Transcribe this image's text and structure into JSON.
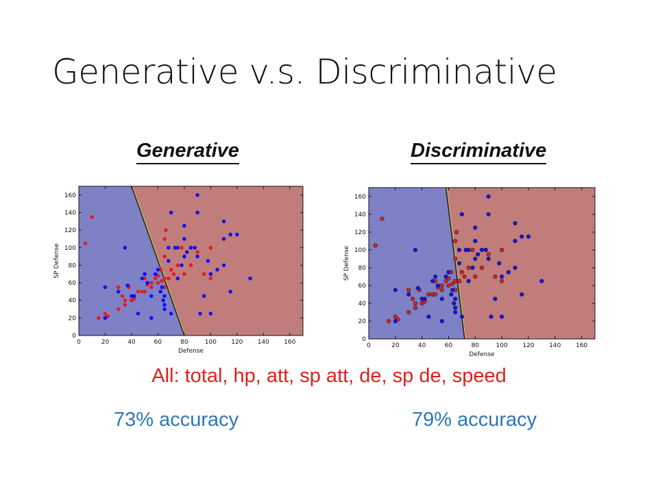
{
  "slide": {
    "title": "Generative v.s. Discriminative",
    "left_heading": "Generative",
    "right_heading": "Discriminative",
    "features_text": "All: total, hp, att, sp att, de, sp de, speed",
    "left_accuracy": "73% accuracy",
    "right_accuracy": "79% accuracy"
  },
  "chart_data": [
    {
      "type": "scatter",
      "title": "",
      "xlabel": "Defense",
      "ylabel": "SP Defense",
      "xlim": [
        0,
        170
      ],
      "ylim": [
        0,
        170
      ],
      "xticks": [
        "0",
        "20",
        "40",
        "60",
        "80",
        "100",
        "120",
        "140",
        "160"
      ],
      "yticks": [
        "0",
        "20",
        "40",
        "60",
        "80",
        "100",
        "120",
        "140",
        "160"
      ],
      "region_colors": {
        "left": "#7f81c6",
        "right": "#c07d7c"
      },
      "boundary_line": [
        [
          40,
          170
        ],
        [
          80,
          0
        ]
      ],
      "series": [
        {
          "color": "#e0201e",
          "points": [
            [
              5,
              105
            ],
            [
              10,
              135
            ],
            [
              15,
              20
            ],
            [
              20,
              25
            ],
            [
              22,
              22
            ],
            [
              30,
              30
            ],
            [
              30,
              55
            ],
            [
              33,
              45
            ],
            [
              35,
              40
            ],
            [
              35,
              35
            ],
            [
              38,
              55
            ],
            [
              40,
              40
            ],
            [
              42,
              42
            ],
            [
              45,
              50
            ],
            [
              48,
              50
            ],
            [
              50,
              50
            ],
            [
              50,
              65
            ],
            [
              52,
              58
            ],
            [
              55,
              55
            ],
            [
              55,
              60
            ],
            [
              58,
              65
            ],
            [
              60,
              60
            ],
            [
              60,
              68
            ],
            [
              62,
              75
            ],
            [
              63,
              62
            ],
            [
              65,
              55
            ],
            [
              65,
              65
            ],
            [
              65,
              90
            ],
            [
              65,
              110
            ],
            [
              66,
              120
            ],
            [
              68,
              65
            ],
            [
              70,
              75
            ],
            [
              72,
              70
            ],
            [
              75,
              80
            ],
            [
              78,
              100
            ],
            [
              80,
              70
            ],
            [
              85,
              80
            ],
            [
              90,
              95
            ],
            [
              100,
              100
            ],
            [
              95,
              70
            ],
            [
              105,
              75
            ],
            [
              100,
              65
            ]
          ]
        },
        {
          "color": "#1111ee",
          "points": [
            [
              20,
              20
            ],
            [
              20,
              55
            ],
            [
              30,
              50
            ],
            [
              35,
              100
            ],
            [
              37,
              57
            ],
            [
              40,
              45
            ],
            [
              42,
              45
            ],
            [
              45,
              25
            ],
            [
              48,
              65
            ],
            [
              50,
              70
            ],
            [
              52,
              60
            ],
            [
              55,
              20
            ],
            [
              55,
              45
            ],
            [
              58,
              70
            ],
            [
              60,
              75
            ],
            [
              62,
              50
            ],
            [
              63,
              55
            ],
            [
              64,
              40
            ],
            [
              65,
              30
            ],
            [
              65,
              35
            ],
            [
              65,
              45
            ],
            [
              68,
              85
            ],
            [
              70,
              140
            ],
            [
              68,
              100
            ],
            [
              70,
              25
            ],
            [
              73,
              100
            ],
            [
              75,
              100
            ],
            [
              75,
              65
            ],
            [
              78,
              80
            ],
            [
              80,
              90
            ],
            [
              80,
              110
            ],
            [
              80,
              125
            ],
            [
              82,
              95
            ],
            [
              85,
              100
            ],
            [
              88,
              100
            ],
            [
              90,
              90
            ],
            [
              90,
              160
            ],
            [
              90,
              140
            ],
            [
              92,
              25
            ],
            [
              95,
              45
            ],
            [
              98,
              85
            ],
            [
              100,
              25
            ],
            [
              100,
              70
            ],
            [
              105,
              75
            ],
            [
              110,
              80
            ],
            [
              110,
              130
            ],
            [
              110,
              110
            ],
            [
              115,
              115
            ],
            [
              115,
              50
            ],
            [
              120,
              115
            ],
            [
              130,
              65
            ]
          ]
        }
      ]
    },
    {
      "type": "scatter",
      "title": "",
      "xlabel": "Defense",
      "ylabel": "SP Defense",
      "xlim": [
        0,
        170
      ],
      "ylim": [
        0,
        170
      ],
      "xticks": [
        "0",
        "20",
        "40",
        "60",
        "80",
        "100",
        "120",
        "140",
        "160"
      ],
      "yticks": [
        "0",
        "20",
        "40",
        "60",
        "80",
        "100",
        "120",
        "140",
        "160"
      ],
      "region_colors": {
        "left": "#7f81c6",
        "right": "#c07d7c"
      },
      "boundary_line": [
        [
          58,
          170
        ],
        [
          72,
          0
        ]
      ],
      "series": [
        {
          "color": "#e0201e",
          "points": [
            [
              5,
              105
            ],
            [
              10,
              135
            ],
            [
              15,
              20
            ],
            [
              20,
              25
            ],
            [
              22,
              22
            ],
            [
              30,
              30
            ],
            [
              30,
              55
            ],
            [
              33,
              45
            ],
            [
              35,
              40
            ],
            [
              35,
              35
            ],
            [
              38,
              55
            ],
            [
              40,
              40
            ],
            [
              42,
              42
            ],
            [
              45,
              50
            ],
            [
              48,
              50
            ],
            [
              50,
              50
            ],
            [
              50,
              65
            ],
            [
              52,
              58
            ],
            [
              55,
              55
            ],
            [
              55,
              60
            ],
            [
              58,
              65
            ],
            [
              60,
              60
            ],
            [
              60,
              68
            ],
            [
              62,
              75
            ],
            [
              63,
              62
            ],
            [
              65,
              55
            ],
            [
              65,
              65
            ],
            [
              65,
              90
            ],
            [
              65,
              110
            ],
            [
              66,
              120
            ],
            [
              68,
              65
            ],
            [
              70,
              75
            ],
            [
              72,
              70
            ],
            [
              75,
              80
            ],
            [
              78,
              100
            ],
            [
              80,
              70
            ],
            [
              85,
              80
            ],
            [
              90,
              95
            ],
            [
              100,
              100
            ],
            [
              95,
              70
            ],
            [
              105,
              75
            ],
            [
              100,
              65
            ]
          ]
        },
        {
          "color": "#1111ee",
          "points": [
            [
              20,
              20
            ],
            [
              20,
              55
            ],
            [
              30,
              50
            ],
            [
              35,
              100
            ],
            [
              37,
              57
            ],
            [
              40,
              45
            ],
            [
              42,
              45
            ],
            [
              45,
              25
            ],
            [
              48,
              65
            ],
            [
              50,
              70
            ],
            [
              52,
              60
            ],
            [
              55,
              20
            ],
            [
              55,
              45
            ],
            [
              58,
              70
            ],
            [
              60,
              75
            ],
            [
              62,
              50
            ],
            [
              63,
              55
            ],
            [
              64,
              40
            ],
            [
              65,
              30
            ],
            [
              65,
              35
            ],
            [
              65,
              45
            ],
            [
              68,
              85
            ],
            [
              70,
              140
            ],
            [
              68,
              100
            ],
            [
              70,
              25
            ],
            [
              73,
              100
            ],
            [
              75,
              100
            ],
            [
              75,
              65
            ],
            [
              78,
              80
            ],
            [
              80,
              90
            ],
            [
              80,
              110
            ],
            [
              80,
              125
            ],
            [
              82,
              95
            ],
            [
              85,
              100
            ],
            [
              88,
              100
            ],
            [
              90,
              90
            ],
            [
              90,
              160
            ],
            [
              90,
              140
            ],
            [
              92,
              25
            ],
            [
              95,
              45
            ],
            [
              98,
              85
            ],
            [
              100,
              25
            ],
            [
              100,
              70
            ],
            [
              105,
              75
            ],
            [
              110,
              80
            ],
            [
              110,
              130
            ],
            [
              110,
              110
            ],
            [
              115,
              115
            ],
            [
              115,
              50
            ],
            [
              120,
              115
            ],
            [
              130,
              65
            ]
          ]
        }
      ]
    }
  ]
}
